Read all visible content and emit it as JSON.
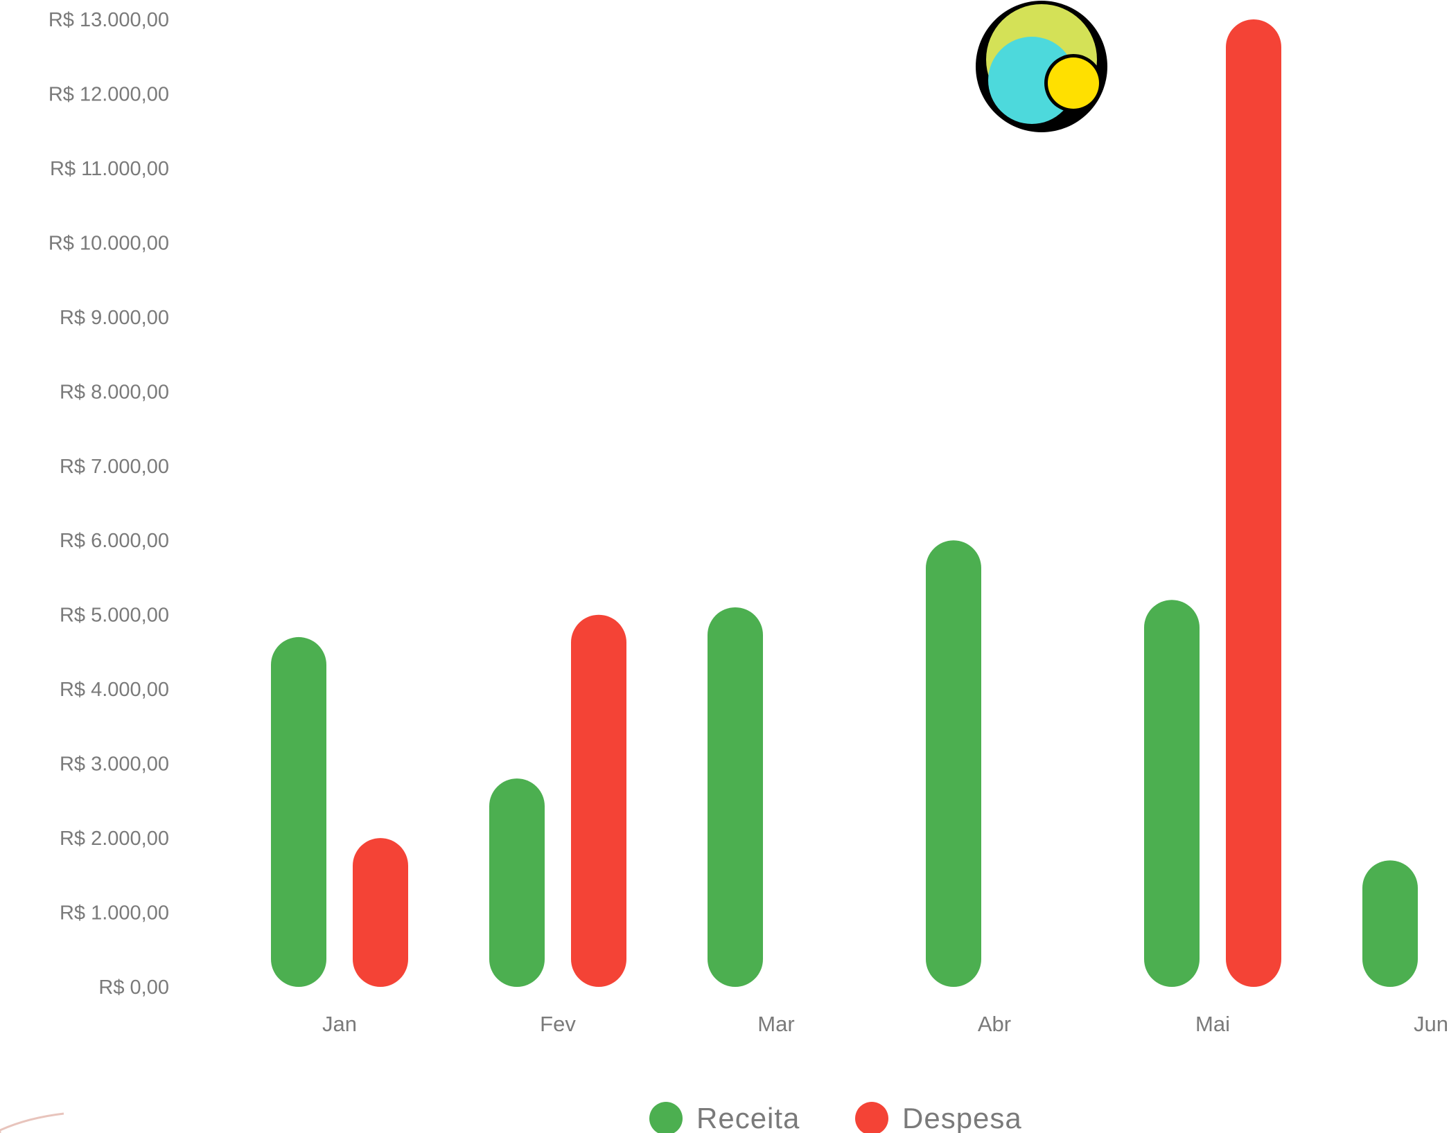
{
  "colors": {
    "receita": "#4caf50",
    "despesa": "#f44336",
    "tick_text": "#7a7a7a",
    "logo_outer": "#d4e157",
    "logo_inner": "#4dd9dc",
    "logo_small": "#ffe000",
    "logo_ring": "#000000"
  },
  "logo": {
    "icon": "overlapping-circles-logo"
  },
  "chart_data": {
    "type": "bar",
    "categories": [
      "Jan",
      "Fev",
      "Mar",
      "Abr",
      "Mai",
      "Jun"
    ],
    "series": [
      {
        "name": "Receita",
        "values": [
          4700,
          2800,
          5100,
          6000,
          5200,
          1700
        ]
      },
      {
        "name": "Despesa",
        "values": [
          2000,
          5000,
          0,
          0,
          13000,
          0
        ]
      }
    ],
    "y_tick_labels": [
      "R$ 0,00",
      "R$ 1.000,00",
      "R$ 2.000,00",
      "R$ 3.000,00",
      "R$ 4.000,00",
      "R$ 5.000,00",
      "R$ 6.000,00",
      "R$ 7.000,00",
      "R$ 8.000,00",
      "R$ 9.000,00",
      "R$ 10.000,00",
      "R$ 11.000,00",
      "R$ 12.000,00",
      "R$ 13.000,00"
    ],
    "ylim": [
      0,
      13000
    ],
    "grid": false,
    "legend_placement": "bottom-center",
    "title": "",
    "xlabel": "",
    "ylabel": ""
  }
}
